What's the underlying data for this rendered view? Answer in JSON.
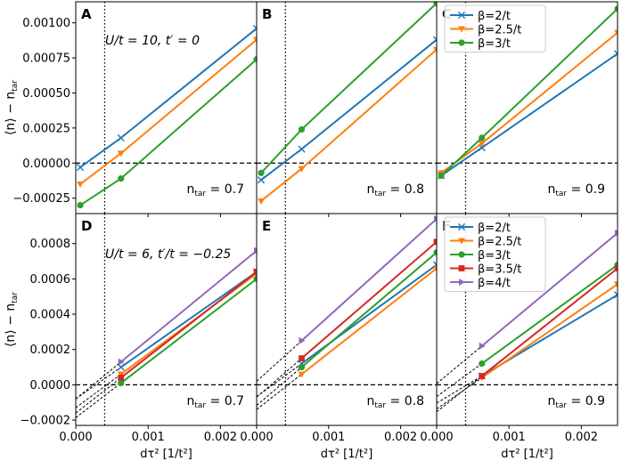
{
  "chart_data": {
    "type": "line",
    "xlabel": "dτ² [1/t²]",
    "ylabel": "⟨n⟩ − n_tar",
    "xlim": [
      0.0,
      0.0025
    ],
    "x_ticks": [
      0.0,
      0.001,
      0.002
    ],
    "x_tick_labels": [
      "0.000",
      "0.001",
      "0.002"
    ],
    "vline_x": 0.0004,
    "hline_y": 0.0,
    "colors": {
      "b2": "#1f77b4",
      "b25": "#ff7f0e",
      "b3": "#2ca02c",
      "b35": "#d62728",
      "b4": "#9467bd"
    },
    "rows": [
      {
        "ylim": [
          -0.00036,
          0.00115
        ],
        "yticks": [
          -0.00025,
          0.0,
          0.00025,
          0.0005,
          0.00075,
          0.001
        ],
        "ytick_labels": [
          "−0.00025",
          "0.00000",
          "0.00025",
          "0.00050",
          "0.00075",
          "0.00100"
        ],
        "annotation": "U/t = 10, t′ = 0",
        "dashed_extrapolation": false,
        "panels": [
          {
            "letter": "A",
            "ntar_label": "n_tar = 0.7",
            "series": [
              {
                "name": "β=2/t",
                "key": "b2",
                "marker": "x",
                "x": [
                  6.25e-05,
                  0.000625,
                  0.0025
                ],
                "y": [
                  -3e-05,
                  0.00018,
                  0.00096
                ]
              },
              {
                "name": "β=2.5/t",
                "key": "b25",
                "marker": "v",
                "x": [
                  6.25e-05,
                  0.000625,
                  0.0025
                ],
                "y": [
                  -0.00015,
                  7e-05,
                  0.00088
                ]
              },
              {
                "name": "β=3/t",
                "key": "b3",
                "marker": "o",
                "x": [
                  6.25e-05,
                  0.000625,
                  0.0025
                ],
                "y": [
                  -0.0003,
                  -0.00011,
                  0.00074
                ]
              }
            ]
          },
          {
            "letter": "B",
            "ntar_label": "n_tar = 0.8",
            "series": [
              {
                "name": "β=2/t",
                "key": "b2",
                "marker": "x",
                "x": [
                  6.25e-05,
                  0.000625,
                  0.0025
                ],
                "y": [
                  -0.00012,
                  0.0001,
                  0.00088
                ]
              },
              {
                "name": "β=2.5/t",
                "key": "b25",
                "marker": "v",
                "x": [
                  6.25e-05,
                  0.000625,
                  0.0025
                ],
                "y": [
                  -0.00027,
                  -4e-05,
                  0.00081
                ]
              },
              {
                "name": "β=3/t",
                "key": "b3",
                "marker": "o",
                "x": [
                  6.25e-05,
                  0.000625,
                  0.0025
                ],
                "y": [
                  -7e-05,
                  0.00024,
                  0.00114
                ]
              }
            ]
          },
          {
            "letter": "C",
            "ntar_label": "n_tar = 0.9",
            "series": [
              {
                "name": "β=2/t",
                "key": "b2",
                "marker": "x",
                "x": [
                  6.25e-05,
                  0.000625,
                  0.0025
                ],
                "y": [
                  -9e-05,
                  0.00011,
                  0.00078
                ]
              },
              {
                "name": "β=2.5/t",
                "key": "b25",
                "marker": "v",
                "x": [
                  6.25e-05,
                  0.000625,
                  0.0025
                ],
                "y": [
                  -7e-05,
                  0.00014,
                  0.00093
                ]
              },
              {
                "name": "β=3/t",
                "key": "b3",
                "marker": "o",
                "x": [
                  6.25e-05,
                  0.000625,
                  0.0025
                ],
                "y": [
                  -9e-05,
                  0.00018,
                  0.0011
                ]
              }
            ],
            "legend": [
              "β=2/t",
              "β=2.5/t",
              "β=3/t"
            ]
          }
        ]
      },
      {
        "ylim": [
          -0.00023,
          0.00097
        ],
        "yticks": [
          -0.0002,
          0.0,
          0.0002,
          0.0004,
          0.0006,
          0.0008
        ],
        "ytick_labels": [
          "−0.0002",
          "0.0000",
          "0.0002",
          "0.0004",
          "0.0006",
          "0.0008"
        ],
        "annotation": "U/t = 6, t′/t = −0.25",
        "dashed_extrapolation": true,
        "panels": [
          {
            "letter": "D",
            "ntar_label": "n_tar = 0.7",
            "series": [
              {
                "name": "β=2/t",
                "key": "b2",
                "marker": "x",
                "x": [
                  0.000625,
                  0.0025
                ],
                "y": [
                  0.0001,
                  0.00064
                ]
              },
              {
                "name": "β=2.5/t",
                "key": "b25",
                "marker": "v",
                "x": [
                  0.000625,
                  0.0025
                ],
                "y": [
                  6e-05,
                  0.00063
                ]
              },
              {
                "name": "β=3/t",
                "key": "b3",
                "marker": "o",
                "x": [
                  0.000625,
                  0.0025
                ],
                "y": [
                  1e-05,
                  0.0006
                ]
              },
              {
                "name": "β=3.5/t",
                "key": "b35",
                "marker": "s",
                "x": [
                  0.000625,
                  0.0025
                ],
                "y": [
                  4e-05,
                  0.00064
                ]
              },
              {
                "name": "β=4/t",
                "key": "b4",
                "marker": ">",
                "x": [
                  0.000625,
                  0.0025
                ],
                "y": [
                  0.00013,
                  0.00076
                ]
              }
            ]
          },
          {
            "letter": "E",
            "ntar_label": "n_tar = 0.8",
            "series": [
              {
                "name": "β=2/t",
                "key": "b2",
                "marker": "x",
                "x": [
                  0.000625,
                  0.0025
                ],
                "y": [
                  0.00012,
                  0.00068
                ]
              },
              {
                "name": "β=2.5/t",
                "key": "b25",
                "marker": "v",
                "x": [
                  0.000625,
                  0.0025
                ],
                "y": [
                  6e-05,
                  0.00066
                ]
              },
              {
                "name": "β=3/t",
                "key": "b3",
                "marker": "o",
                "x": [
                  0.000625,
                  0.0025
                ],
                "y": [
                  0.0001,
                  0.00075
                ]
              },
              {
                "name": "β=3.5/t",
                "key": "b35",
                "marker": "s",
                "x": [
                  0.000625,
                  0.0025
                ],
                "y": [
                  0.00015,
                  0.00081
                ]
              },
              {
                "name": "β=4/t",
                "key": "b4",
                "marker": ">",
                "x": [
                  0.000625,
                  0.0025
                ],
                "y": [
                  0.00025,
                  0.00094
                ]
              }
            ]
          },
          {
            "letter": "F",
            "ntar_label": "n_tar = 0.9",
            "series": [
              {
                "name": "β=2/t",
                "key": "b2",
                "marker": "x",
                "x": [
                  0.000625,
                  0.0025
                ],
                "y": [
                  5e-05,
                  0.00051
                ]
              },
              {
                "name": "β=2.5/t",
                "key": "b25",
                "marker": "v",
                "x": [
                  0.000625,
                  0.0025
                ],
                "y": [
                  4e-05,
                  0.00057
                ]
              },
              {
                "name": "β=3/t",
                "key": "b3",
                "marker": "o",
                "x": [
                  0.000625,
                  0.0025
                ],
                "y": [
                  0.00012,
                  0.00068
                ]
              },
              {
                "name": "β=3.5/t",
                "key": "b35",
                "marker": "s",
                "x": [
                  0.000625,
                  0.0025
                ],
                "y": [
                  5e-05,
                  0.00066
                ]
              },
              {
                "name": "β=4/t",
                "key": "b4",
                "marker": ">",
                "x": [
                  0.000625,
                  0.0025
                ],
                "y": [
                  0.00022,
                  0.00086
                ]
              }
            ],
            "legend": [
              "β=2/t",
              "β=2.5/t",
              "β=3/t",
              "β=3.5/t",
              "β=4/t"
            ]
          }
        ]
      }
    ]
  }
}
